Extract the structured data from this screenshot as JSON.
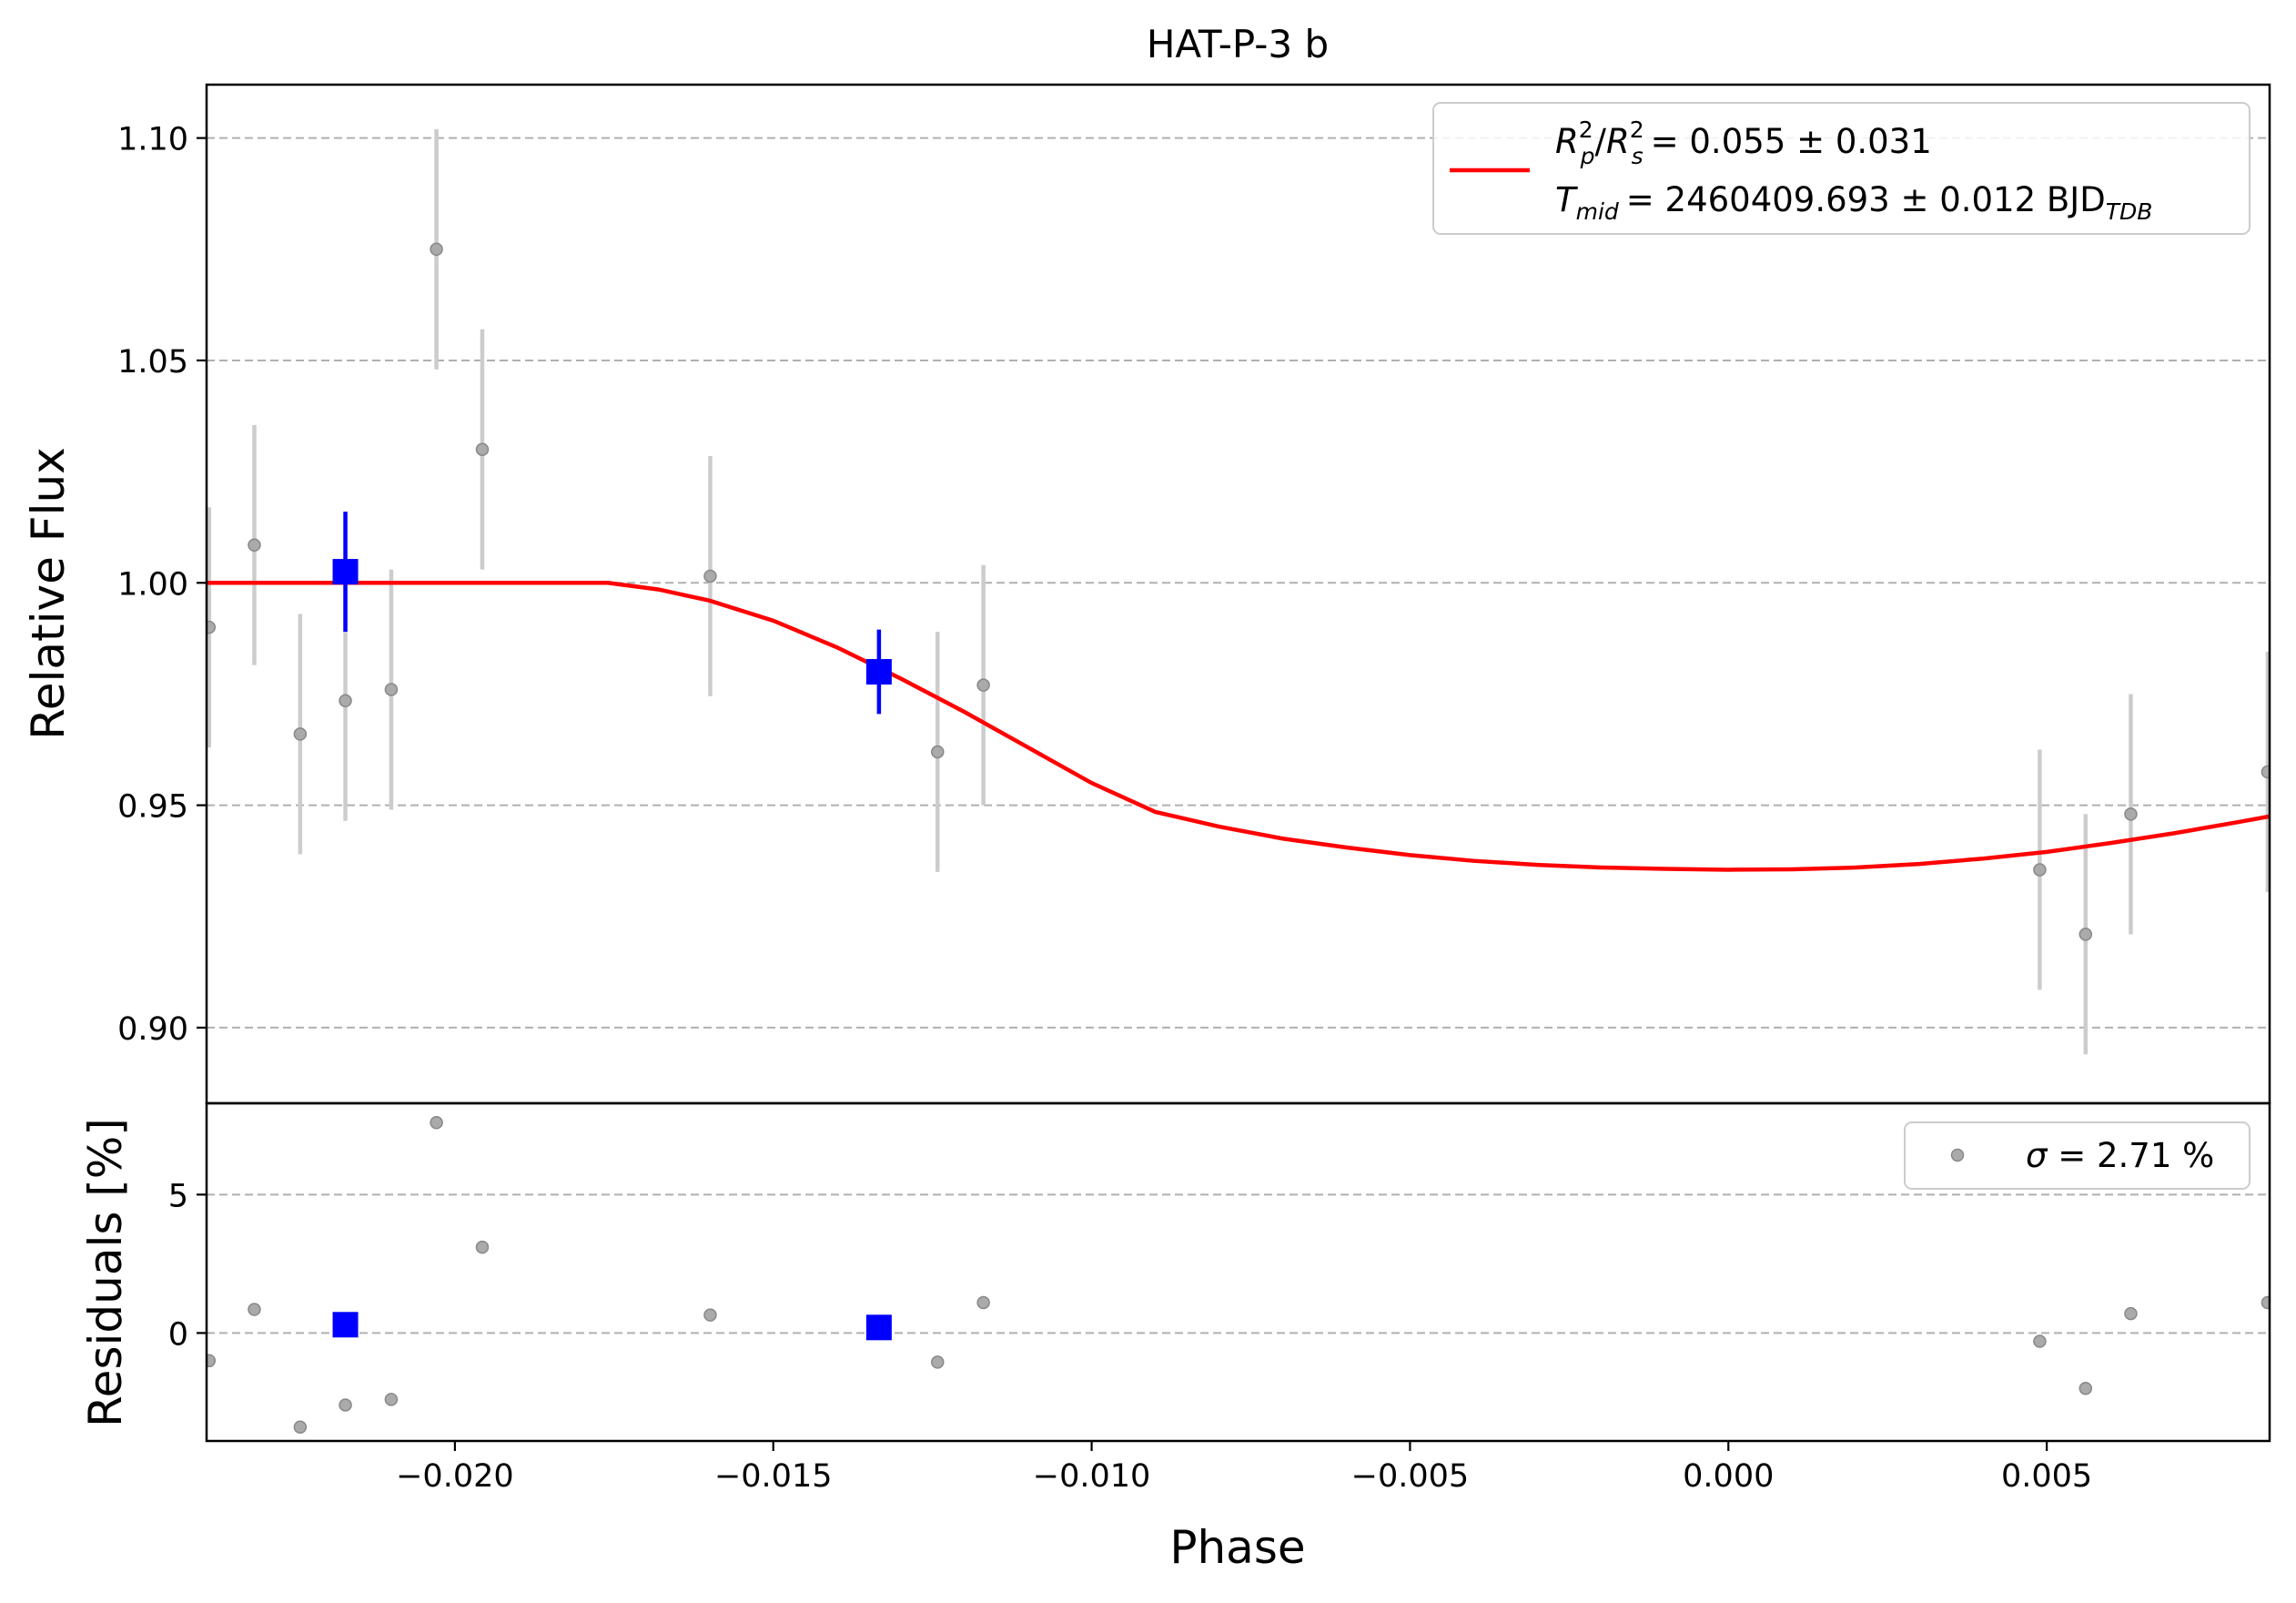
{
  "chart_data": [
    {
      "type": "scatter",
      "title": "HAT-P-3 b",
      "xlabel": "Phase",
      "ylabel": "Relative Flux",
      "xlim": [
        -0.0239,
        0.0085
      ],
      "ylim": [
        0.883,
        1.112
      ],
      "yticks": [
        0.9,
        0.95,
        1.0,
        1.05,
        1.1
      ],
      "ytick_labels": [
        "0.90",
        "0.95",
        "1.00",
        "1.05",
        "1.10"
      ],
      "grid": "horizontal dashed",
      "legend": {
        "placement": "top-right",
        "line1_main": "= 0.055 ± 0.031",
        "line2_main": "= 2460409.693 ± 0.012 BJD",
        "line2_sub": "TDB",
        "ratio_r": "R",
        "ratio_p": "p",
        "ratio_s": "s",
        "ratio_exp": "2",
        "ratio_slash": "/",
        "tmid_t": "T",
        "tmid_sub": "mid"
      },
      "series": [
        {
          "name": "data",
          "style": "gray points with errorbars",
          "x": [
            -0.02386,
            -0.02315,
            -0.02243,
            -0.02172,
            -0.021,
            -0.02029,
            -0.01957,
            -0.01599,
            -0.01242,
            -0.0117,
            0.00489,
            0.00561,
            0.00632,
            0.00847
          ],
          "y": [
            0.99,
            1.0085,
            0.966,
            0.9735,
            0.976,
            1.075,
            1.03,
            1.0015,
            0.962,
            0.977,
            0.9355,
            0.921,
            0.948,
            0.9575
          ],
          "yerr": [
            0.027,
            0.027,
            0.027,
            0.027,
            0.027,
            0.027,
            0.027,
            0.027,
            0.027,
            0.027,
            0.027,
            0.027,
            0.027,
            0.027
          ]
        },
        {
          "name": "binned",
          "style": "blue squares with errorbars",
          "x": [
            -0.02172,
            -0.01334
          ],
          "y": [
            1.0025,
            0.98
          ],
          "yerr": [
            0.0135,
            0.0095
          ]
        },
        {
          "name": "model",
          "style": "red line",
          "x": [
            -0.0239,
            -0.0176,
            -0.0168,
            -0.016,
            -0.015,
            -0.014,
            -0.013,
            -0.012,
            -0.011,
            -0.01,
            -0.009,
            -0.008,
            -0.007,
            -0.006,
            -0.005,
            -0.004,
            -0.003,
            -0.002,
            -0.001,
            0.0,
            0.001,
            0.002,
            0.003,
            0.004,
            0.005,
            0.006,
            0.007,
            0.008,
            0.0085
          ],
          "y": [
            1.0,
            1.0,
            0.9985,
            0.996,
            0.9915,
            0.9855,
            0.9785,
            0.971,
            0.963,
            0.955,
            0.9485,
            0.9452,
            0.9425,
            0.9405,
            0.9388,
            0.9375,
            0.9366,
            0.936,
            0.9357,
            0.9355,
            0.9356,
            0.936,
            0.9368,
            0.938,
            0.9395,
            0.9415,
            0.9437,
            0.9462,
            0.9475
          ]
        }
      ]
    },
    {
      "type": "scatter",
      "title": "",
      "xlabel": "Phase",
      "ylabel": "Residuals [%]",
      "xlim": [
        -0.0239,
        0.0085
      ],
      "ylim": [
        -3.9,
        8.3
      ],
      "yticks": [
        0,
        5
      ],
      "ytick_labels": [
        "0",
        "5"
      ],
      "xticks": [
        -0.02,
        -0.015,
        -0.01,
        -0.005,
        0.0,
        0.005
      ],
      "xtick_labels": [
        "−0.020",
        "−0.015",
        "−0.010",
        "−0.005",
        "0.000",
        "0.005"
      ],
      "grid": "horizontal dashed",
      "legend": {
        "placement": "top-right",
        "sigma_symbol": "σ",
        "text": " = 2.71 %"
      },
      "series": [
        {
          "name": "residuals",
          "style": "gray points",
          "x": [
            -0.02386,
            -0.02315,
            -0.02243,
            -0.02172,
            -0.021,
            -0.02029,
            -0.01957,
            -0.01599,
            -0.01242,
            -0.0117,
            0.00489,
            0.00561,
            0.00632,
            0.00847
          ],
          "y": [
            -1.0,
            0.85,
            -3.4,
            -2.6,
            -2.4,
            7.6,
            3.1,
            0.65,
            -1.05,
            1.1,
            -0.3,
            -2.0,
            0.7,
            1.1
          ]
        },
        {
          "name": "binned residuals",
          "style": "blue squares",
          "x": [
            -0.02172,
            -0.01334
          ],
          "y": [
            0.3,
            0.2
          ]
        }
      ]
    }
  ]
}
